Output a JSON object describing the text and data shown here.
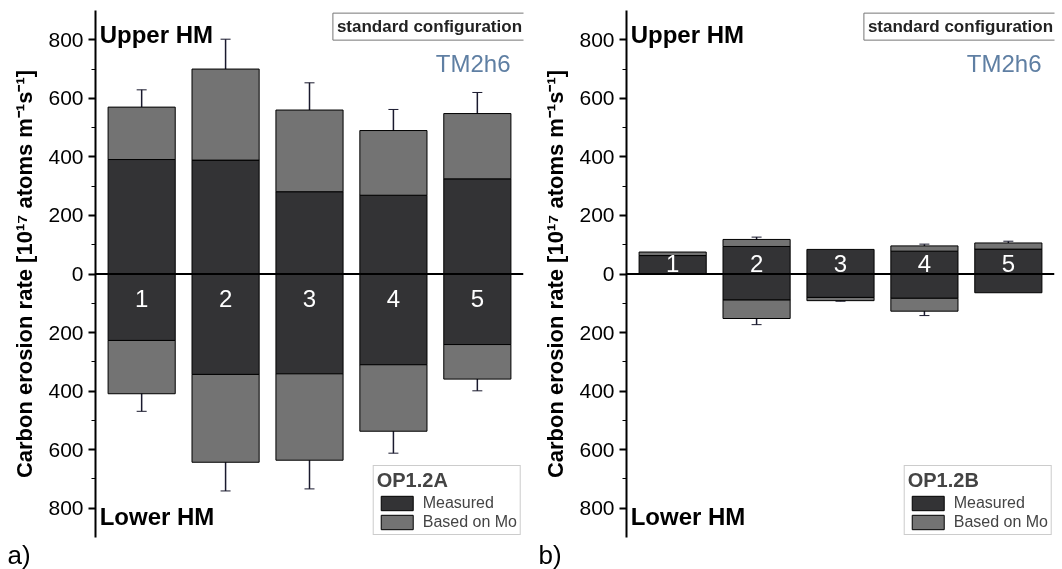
{
  "chart_data": [
    {
      "type": "bar",
      "stacked": true,
      "categories": [
        "1",
        "2",
        "3",
        "4",
        "5"
      ],
      "ylabel": "Carbon erosion rate [10¹⁷ atoms m⁻¹s⁻¹]",
      "legend_title": "OP1.2A",
      "legend": "bottom right",
      "grid": false,
      "tick_labels": "y",
      "ylim": [
        -900,
        900
      ],
      "yticks": [
        {
          "value": -800,
          "label": "800"
        },
        {
          "value": -600,
          "label": "600"
        },
        {
          "value": -400,
          "label": "400"
        },
        {
          "value": -200,
          "label": "200"
        },
        0,
        200,
        400,
        600,
        800
      ],
      "ref_lines": [
        {
          "axis": "y",
          "value": 0,
          "label": null,
          "color": "#000000"
        }
      ],
      "annotations": [
        "Upper HM",
        "Lower HM",
        "a)",
        "standard configuration",
        "TM2h6"
      ],
      "series": [
        {
          "name": "Measured",
          "color": "#333335",
          "values": [
            391,
            389,
            281,
            269,
            325
          ]
        },
        {
          "name": "Based on Mo",
          "color": "#737373",
          "values": [
            179,
            311,
            279,
            221,
            223
          ],
          "errors": [
            59,
            102,
            93,
            72,
            72
          ]
        },
        {
          "color": "#333335",
          "values": [
            -227,
            -343,
            -341,
            -310,
            -241
          ]
        },
        {
          "color": "#737373",
          "values": [
            -182,
            -300,
            -295,
            -227,
            -118
          ],
          "errors": [
            60,
            98,
            98,
            75,
            40
          ]
        }
      ]
    },
    {
      "type": "bar",
      "stacked": true,
      "categories": [
        "1",
        "2",
        "3",
        "4",
        "5"
      ],
      "ylabel": "Carbon erosion rate [10¹⁷ atoms m⁻¹s⁻¹]",
      "legend_title": "OP1.2B",
      "legend": "bottom right",
      "grid": false,
      "tick_labels": "y",
      "ylim": [
        -900,
        900
      ],
      "yticks": [
        {
          "value": -800,
          "label": "800"
        },
        {
          "value": -600,
          "label": "600"
        },
        {
          "value": -400,
          "label": "400"
        },
        {
          "value": -200,
          "label": "200"
        },
        0,
        200,
        400,
        600,
        800
      ],
      "ref_lines": [
        {
          "axis": "y",
          "value": 0,
          "label": null,
          "color": "#000000"
        }
      ],
      "annotations": [
        "Upper HM",
        "Lower HM",
        "b)",
        "standard configuration",
        "TM2h6"
      ],
      "series": [
        {
          "name": "Measured",
          "color": "#333335",
          "values": [
            63,
            94,
            84,
            78,
            85
          ]
        },
        {
          "name": "Based on Mo",
          "color": "#737373",
          "values": [
            12,
            24,
            null,
            18,
            21
          ],
          "errors": [
            null,
            8,
            null,
            6,
            6
          ]
        },
        {
          "color": "#333335",
          "values": [
            null,
            -89,
            -80,
            -83,
            -64
          ]
        },
        {
          "color": "#737373",
          "values": [
            null,
            -63,
            -11,
            -44,
            null
          ],
          "errors": [
            null,
            21,
            2,
            15,
            null
          ]
        }
      ]
    }
  ]
}
